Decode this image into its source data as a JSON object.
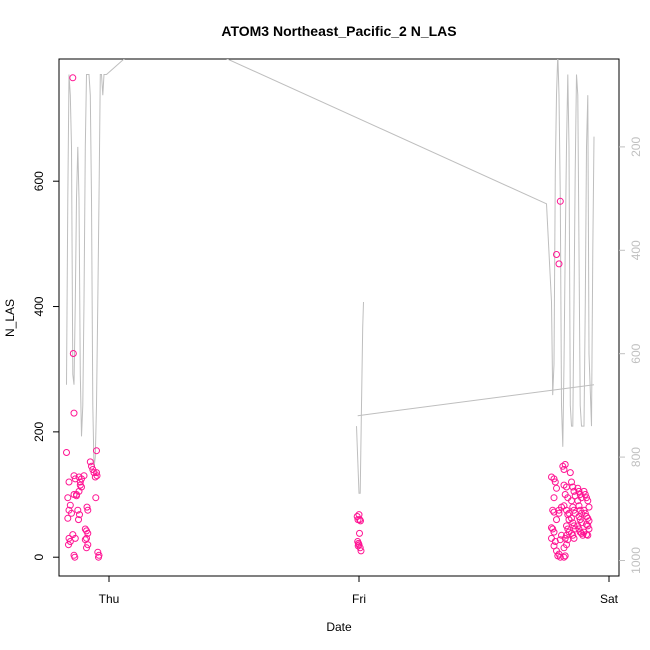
{
  "chart_data": {
    "type": "scatter",
    "title": "ATOM3 Northeast_Pacific_2 N_LAS",
    "xlabel": "Date",
    "ylabel": "N_LAS",
    "x_tick_labels": [
      "Thu",
      "Fri",
      "Sat"
    ],
    "x_ticks_days": [
      0,
      1,
      2
    ],
    "xlim_days": [
      -0.2,
      2.04
    ],
    "ylim": [
      -30,
      795
    ],
    "y_ticks": [
      0,
      200,
      400,
      600
    ],
    "y2_ticks": [
      200,
      400,
      600,
      800,
      1000
    ],
    "y2_direction": "reversed",
    "y2_range_at_left_bottom_top": [
      1030,
      30
    ],
    "colors": {
      "points": "#ff1493",
      "line": "#bebebe",
      "axis": "#000000",
      "y2_axis": "#c0c0c0"
    },
    "series": [
      {
        "kind": "points",
        "points": [
          [
            -0.17,
            167
          ],
          [
            -0.16,
            120
          ],
          [
            -0.165,
            95
          ],
          [
            -0.155,
            83
          ],
          [
            -0.16,
            75
          ],
          [
            -0.15,
            70
          ],
          [
            -0.165,
            62
          ],
          [
            -0.16,
            30
          ],
          [
            -0.155,
            25
          ],
          [
            -0.162,
            20
          ],
          [
            -0.14,
            130
          ],
          [
            -0.135,
            125
          ],
          [
            -0.13,
            100
          ],
          [
            -0.14,
            100
          ],
          [
            -0.13,
            98
          ],
          [
            -0.145,
            36
          ],
          [
            -0.135,
            30
          ],
          [
            -0.14,
            3
          ],
          [
            -0.137,
            0
          ],
          [
            -0.145,
            765
          ],
          [
            -0.143,
            325
          ],
          [
            -0.14,
            230
          ],
          [
            -0.12,
            128
          ],
          [
            -0.115,
            120
          ],
          [
            -0.11,
            112
          ],
          [
            -0.12,
            105
          ],
          [
            -0.125,
            75
          ],
          [
            -0.118,
            68
          ],
          [
            -0.122,
            60
          ],
          [
            -0.115,
            115
          ],
          [
            -0.11,
            125
          ],
          [
            -0.1,
            130
          ],
          [
            -0.095,
            45
          ],
          [
            -0.09,
            42
          ],
          [
            -0.085,
            38
          ],
          [
            -0.09,
            30
          ],
          [
            -0.095,
            28
          ],
          [
            -0.085,
            20
          ],
          [
            -0.09,
            15
          ],
          [
            -0.088,
            80
          ],
          [
            -0.085,
            75
          ],
          [
            -0.075,
            152
          ],
          [
            -0.07,
            145
          ],
          [
            -0.065,
            140
          ],
          [
            -0.06,
            135
          ],
          [
            -0.055,
            128
          ],
          [
            -0.05,
            135
          ],
          [
            -0.048,
            130
          ],
          [
            -0.053,
            95
          ],
          [
            -0.05,
            170
          ],
          [
            -0.045,
            8
          ],
          [
            -0.04,
            3
          ],
          [
            -0.042,
            0
          ],
          [
            0.993,
            65
          ],
          [
            0.996,
            60
          ],
          [
            1.0,
            68
          ],
          [
            1.003,
            60
          ],
          [
            1.006,
            58
          ],
          [
            0.995,
            25
          ],
          [
            0.998,
            22
          ],
          [
            1.002,
            38
          ],
          [
            1.005,
            15
          ],
          [
            1.008,
            10
          ],
          [
            1.0,
            20
          ],
          [
            0.997,
            18
          ],
          [
            1.77,
            128
          ],
          [
            1.78,
            125
          ],
          [
            1.785,
            120
          ],
          [
            1.79,
            110
          ],
          [
            1.78,
            95
          ],
          [
            1.775,
            75
          ],
          [
            1.78,
            72
          ],
          [
            1.79,
            60
          ],
          [
            1.77,
            47
          ],
          [
            1.775,
            45
          ],
          [
            1.78,
            40
          ],
          [
            1.77,
            30
          ],
          [
            1.785,
            25
          ],
          [
            1.78,
            18
          ],
          [
            1.79,
            10
          ],
          [
            1.795,
            2
          ],
          [
            1.8,
            5
          ],
          [
            1.8,
            75
          ],
          [
            1.81,
            80
          ],
          [
            1.8,
            70
          ],
          [
            1.81,
            35
          ],
          [
            1.805,
            28
          ],
          [
            1.805,
            0
          ],
          [
            1.815,
            145
          ],
          [
            1.82,
            140
          ],
          [
            1.825,
            148
          ],
          [
            1.82,
            115
          ],
          [
            1.83,
            112
          ],
          [
            1.825,
            100
          ],
          [
            1.835,
            95
          ],
          [
            1.82,
            82
          ],
          [
            1.83,
            75
          ],
          [
            1.84,
            70
          ],
          [
            1.835,
            68
          ],
          [
            1.84,
            60
          ],
          [
            1.83,
            50
          ],
          [
            1.835,
            45
          ],
          [
            1.84,
            40
          ],
          [
            1.83,
            35
          ],
          [
            1.825,
            30
          ],
          [
            1.835,
            28
          ],
          [
            1.83,
            20
          ],
          [
            1.82,
            15
          ],
          [
            1.82,
            0
          ],
          [
            1.825,
            2
          ],
          [
            1.845,
            135
          ],
          [
            1.85,
            120
          ],
          [
            1.855,
            112
          ],
          [
            1.86,
            105
          ],
          [
            1.865,
            98
          ],
          [
            1.85,
            90
          ],
          [
            1.855,
            80
          ],
          [
            1.86,
            75
          ],
          [
            1.865,
            70
          ],
          [
            1.85,
            62
          ],
          [
            1.855,
            55
          ],
          [
            1.86,
            50
          ],
          [
            1.865,
            45
          ],
          [
            1.85,
            38
          ],
          [
            1.855,
            35
          ],
          [
            1.86,
            30
          ],
          [
            1.875,
            110
          ],
          [
            1.88,
            105
          ],
          [
            1.885,
            100
          ],
          [
            1.89,
            95
          ],
          [
            1.875,
            90
          ],
          [
            1.88,
            82
          ],
          [
            1.885,
            75
          ],
          [
            1.89,
            70
          ],
          [
            1.88,
            65
          ],
          [
            1.885,
            60
          ],
          [
            1.89,
            55
          ],
          [
            1.875,
            50
          ],
          [
            1.88,
            45
          ],
          [
            1.885,
            40
          ],
          [
            1.89,
            38
          ],
          [
            1.895,
            35
          ],
          [
            1.9,
            105
          ],
          [
            1.905,
            100
          ],
          [
            1.91,
            95
          ],
          [
            1.915,
            90
          ],
          [
            1.92,
            80
          ],
          [
            1.9,
            75
          ],
          [
            1.905,
            70
          ],
          [
            1.91,
            65
          ],
          [
            1.915,
            62
          ],
          [
            1.92,
            58
          ],
          [
            1.91,
            52
          ],
          [
            1.915,
            50
          ],
          [
            1.92,
            45
          ],
          [
            1.9,
            40
          ],
          [
            1.91,
            36
          ],
          [
            1.915,
            35
          ],
          [
            1.79,
            483
          ],
          [
            1.8,
            468
          ],
          [
            1.805,
            568
          ]
        ]
      },
      {
        "kind": "line",
        "axis": "y2",
        "segments": [
          [
            [
              -0.17,
              660
            ],
            [
              -0.165,
              300
            ],
            [
              -0.16,
              60
            ],
            [
              -0.155,
              100
            ],
            [
              -0.15,
              200
            ],
            [
              -0.145,
              640
            ],
            [
              -0.14,
              660
            ],
            [
              -0.135,
              500
            ],
            [
              -0.13,
              300
            ],
            [
              -0.125,
              200
            ],
            [
              -0.12,
              300
            ],
            [
              -0.115,
              640
            ],
            [
              -0.11,
              760
            ],
            [
              -0.105,
              700
            ],
            [
              -0.1,
              500
            ],
            [
              -0.095,
              200
            ],
            [
              -0.09,
              60
            ],
            [
              -0.085,
              60
            ],
            [
              -0.08,
              60
            ],
            [
              -0.075,
              100
            ],
            [
              -0.07,
              300
            ],
            [
              -0.065,
              700
            ],
            [
              -0.06,
              820
            ],
            [
              -0.055,
              800
            ],
            [
              -0.05,
              700
            ],
            [
              -0.045,
              500
            ],
            [
              -0.04,
              300
            ],
            [
              -0.035,
              60
            ],
            [
              -0.03,
              60
            ],
            [
              -0.025,
              100
            ],
            [
              -0.02,
              60
            ],
            [
              -0.01,
              60
            ],
            [
              0.2,
              -30
            ],
            [
              1.75,
              310
            ],
            [
              1.77,
              500
            ],
            [
              1.775,
              680
            ],
            [
              1.78,
              620
            ],
            [
              1.785,
              250
            ],
            [
              1.79,
              100
            ],
            [
              1.795,
              20
            ],
            [
              1.8,
              100
            ],
            [
              1.805,
              300
            ],
            [
              1.81,
              700
            ],
            [
              1.815,
              780
            ],
            [
              1.82,
              620
            ],
            [
              1.825,
              400
            ],
            [
              1.83,
              200
            ],
            [
              1.835,
              60
            ],
            [
              1.84,
              200
            ],
            [
              1.845,
              700
            ],
            [
              1.85,
              740
            ],
            [
              1.855,
              740
            ],
            [
              1.86,
              500
            ],
            [
              1.865,
              250
            ],
            [
              1.87,
              60
            ],
            [
              1.875,
              100
            ],
            [
              1.88,
              400
            ],
            [
              1.885,
              700
            ],
            [
              1.89,
              740
            ],
            [
              1.9,
              740
            ],
            [
              1.905,
              500
            ],
            [
              1.91,
              200
            ],
            [
              1.915,
              100
            ],
            [
              1.92,
              600
            ],
            [
              1.93,
              740
            ],
            [
              1.935,
              400
            ],
            [
              1.94,
              180
            ]
          ],
          [
            [
              0.99,
              740
            ],
            [
              1.0,
              870
            ],
            [
              1.005,
              870
            ],
            [
              1.01,
              700
            ],
            [
              1.015,
              550
            ],
            [
              1.018,
              500
            ]
          ],
          [
            [
              0.995,
              720
            ],
            [
              1.94,
              660
            ]
          ]
        ]
      }
    ]
  }
}
